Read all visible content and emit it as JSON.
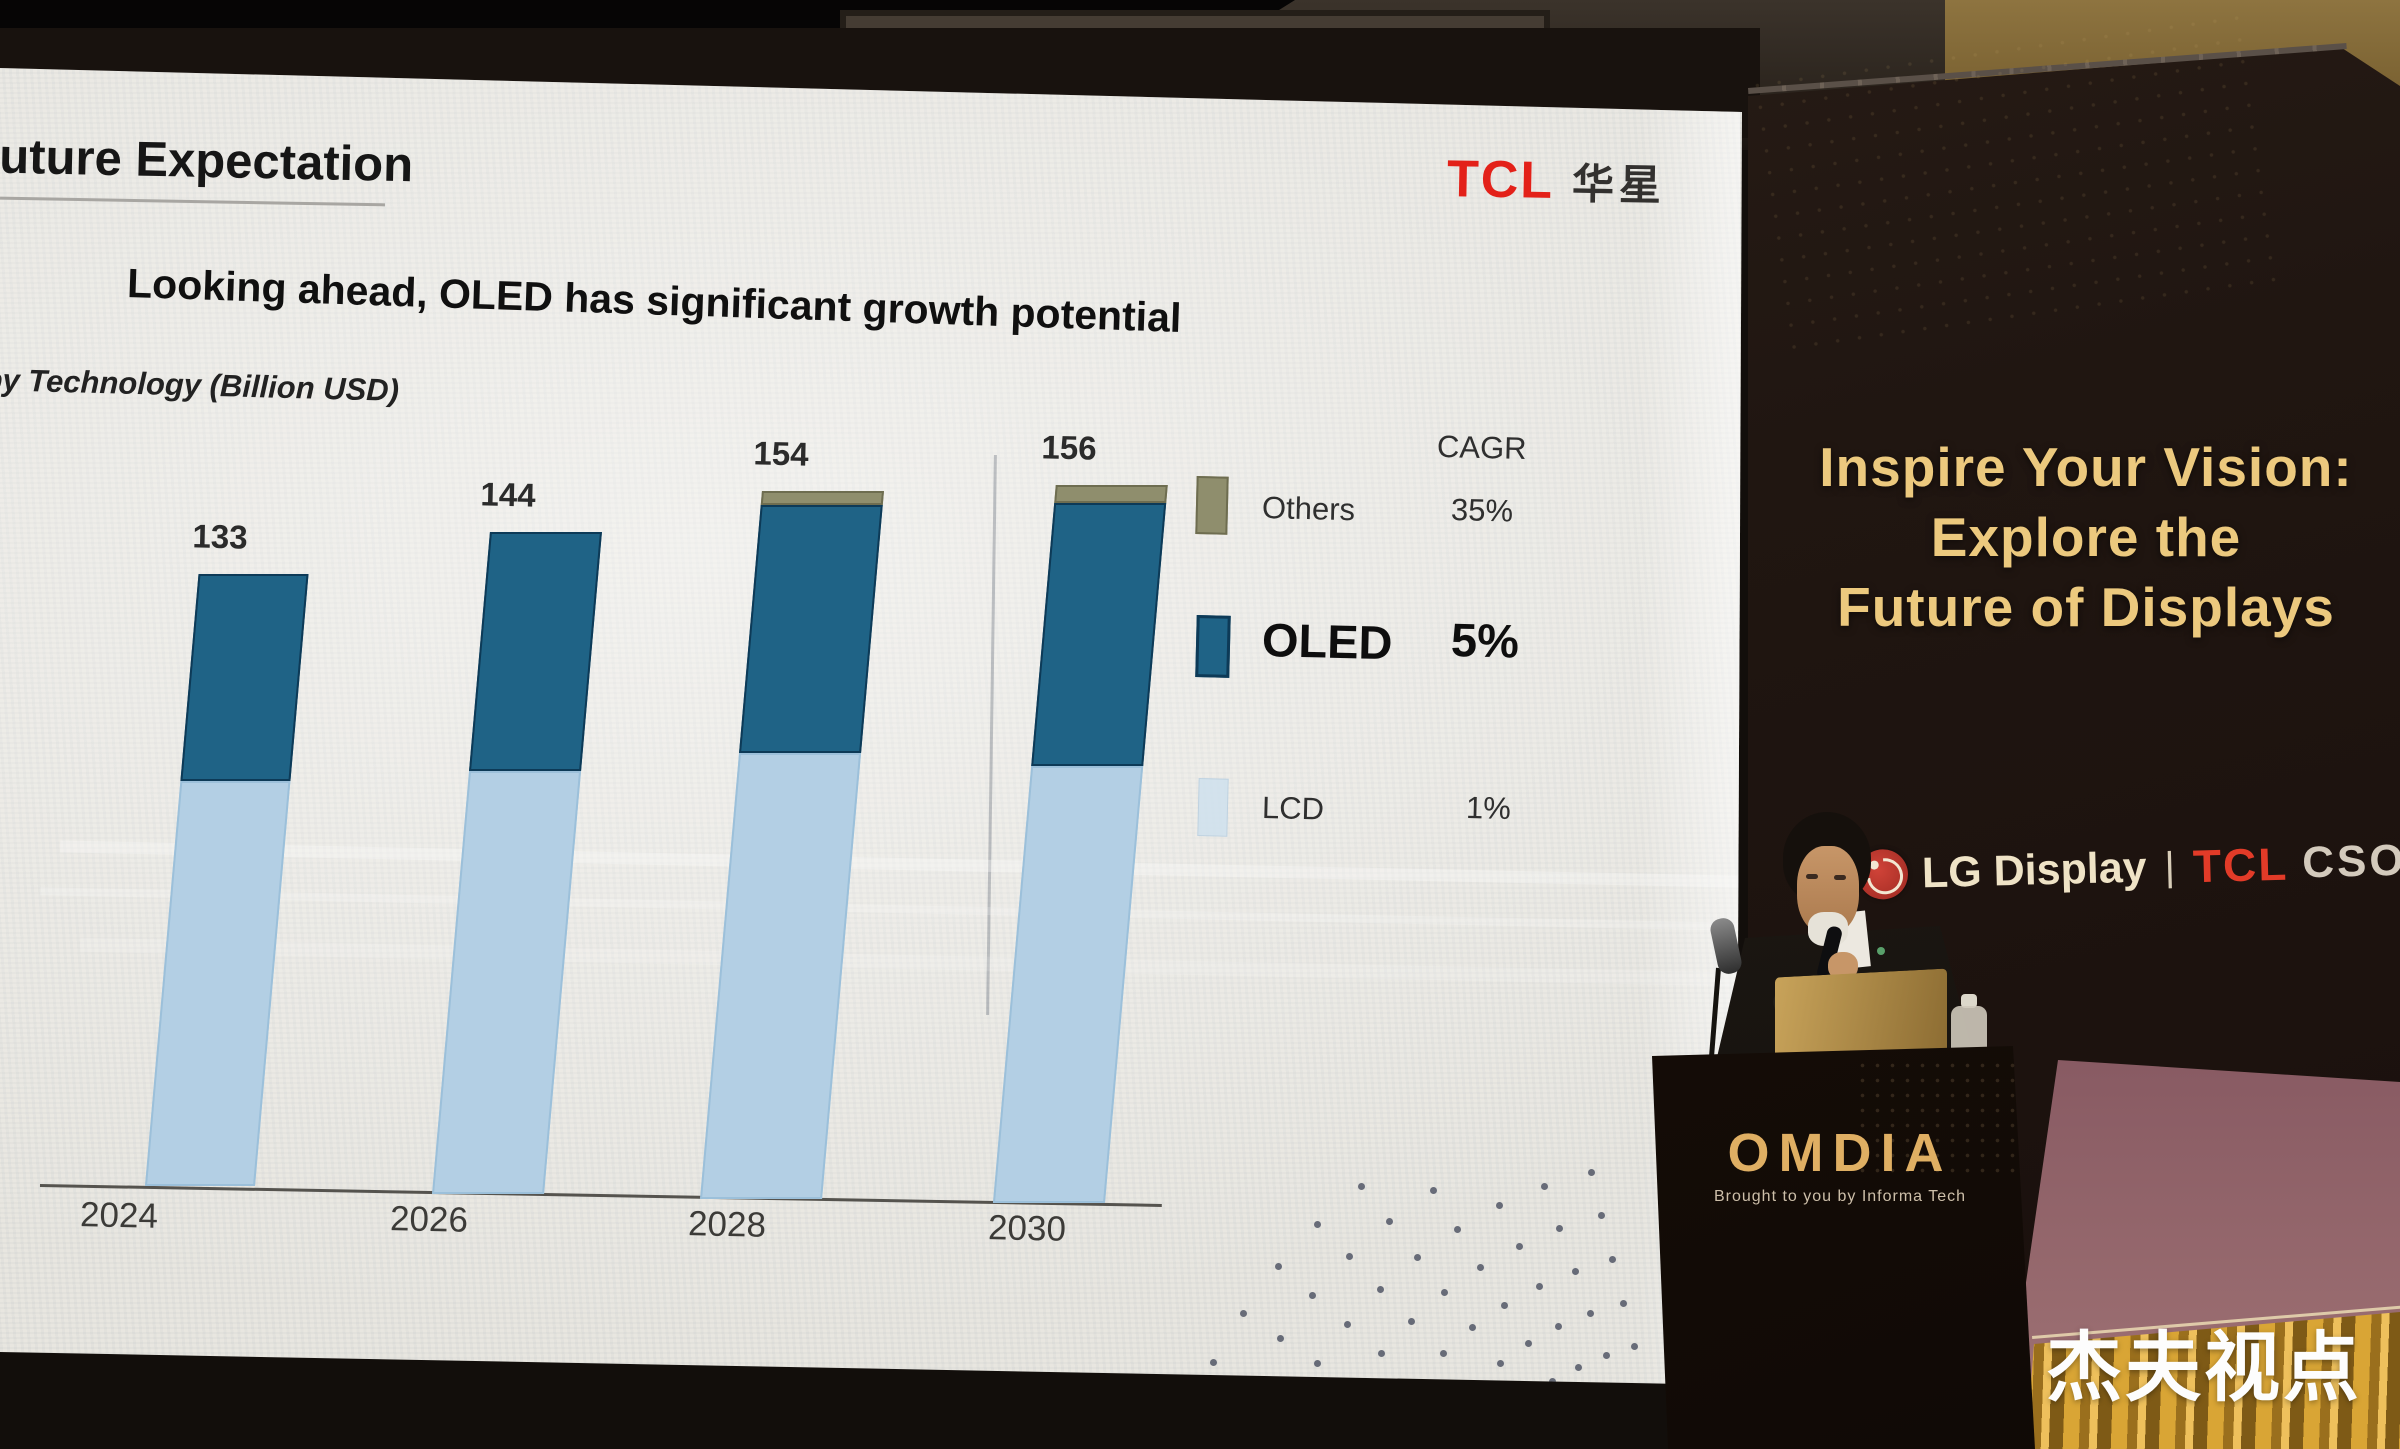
{
  "scene": {
    "watermark": "杰夫视点"
  },
  "slide": {
    "title": "Future Expectation",
    "logo_tcl": "TCL",
    "logo_huaxing": "华星",
    "subtitle": "Looking ahead, OLED has significant growth potential",
    "chart_label": "by Technology (Billion USD)",
    "legend": {
      "header": "CAGR",
      "items": [
        {
          "label": "Others",
          "cagr": "35%"
        },
        {
          "label": "OLED",
          "cagr": "5%"
        },
        {
          "label": "LCD",
          "cagr": "1%"
        }
      ]
    }
  },
  "chart_data": {
    "type": "bar",
    "stacked": true,
    "title": "by Technology (Billion USD)",
    "categories": [
      "2024",
      "2026",
      "2028",
      "2030"
    ],
    "totals": [
      133,
      144,
      154,
      156
    ],
    "series": [
      {
        "name": "LCD",
        "values": [
          88,
          92,
          97,
          95
        ],
        "cagr": "1%"
      },
      {
        "name": "OLED",
        "values": [
          45,
          52,
          54,
          57
        ],
        "cagr": "5%"
      },
      {
        "name": "Others",
        "values": [
          0,
          0,
          3,
          4
        ],
        "cagr": "35%"
      }
    ],
    "value_labels": [
      133,
      144,
      154,
      156
    ],
    "legend_position": "right",
    "grid": false
  },
  "banner": {
    "line1": "Inspire Your Vision:",
    "line2": "Explore the",
    "line3": "Future of Displays",
    "lg": "LG Display",
    "divider": "|",
    "tcl": "TCL",
    "csot": "CSOT"
  },
  "podium": {
    "brand": "OMDIA",
    "tagline": "Brought to you by Informa Tech"
  },
  "colors": {
    "lcd": "#b3cfe4",
    "lcd_border": "#9cc0da",
    "oled": "#1f6386",
    "oled_border": "#0d3a57",
    "others": "#8f8e6d",
    "others_border": "#6e6d50",
    "tcl_red": "#e32119",
    "banner_gold": "#ecc97e",
    "csot_silver": "#d3cabc",
    "omdia_gold": "#dfaf63"
  }
}
